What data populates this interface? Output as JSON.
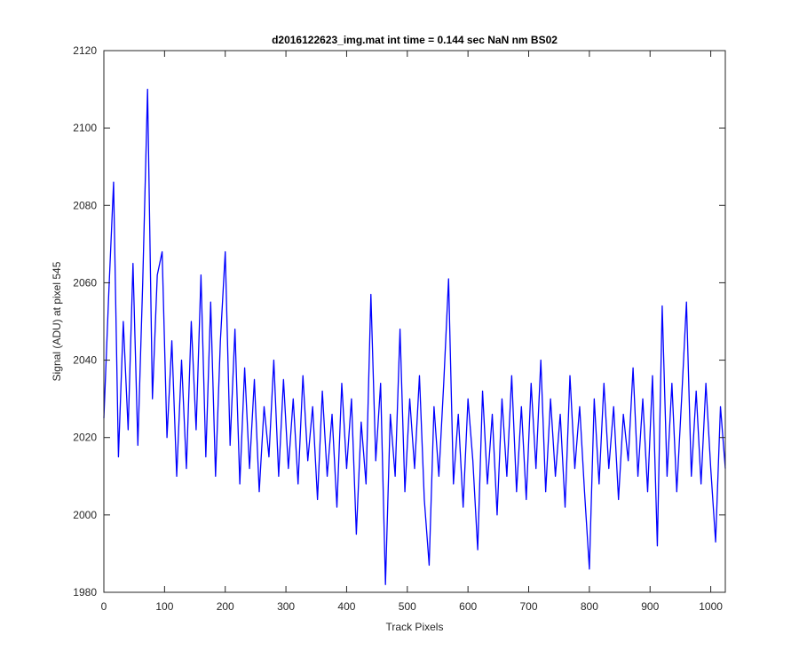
{
  "chart_data": {
    "type": "line",
    "title": "d2016122623_img.mat int time = 0.144 sec  NaN nm BS02",
    "x_label": "Track Pixels",
    "y_label": "Signal (ADU) at pixel 545",
    "xlim": [
      0,
      1024
    ],
    "ylim": [
      1980,
      2120
    ],
    "xticks": [
      0,
      100,
      200,
      300,
      400,
      500,
      600,
      700,
      800,
      900,
      1000
    ],
    "yticks": [
      1980,
      2000,
      2020,
      2040,
      2060,
      2080,
      2100,
      2120
    ],
    "x": [
      0,
      8,
      16,
      24,
      32,
      40,
      48,
      56,
      64,
      72,
      80,
      88,
      96,
      104,
      112,
      120,
      128,
      136,
      144,
      152,
      160,
      168,
      176,
      184,
      192,
      200,
      208,
      216,
      224,
      232,
      240,
      248,
      256,
      264,
      272,
      280,
      288,
      296,
      304,
      312,
      320,
      328,
      336,
      344,
      352,
      360,
      368,
      376,
      384,
      392,
      400,
      408,
      416,
      424,
      432,
      440,
      448,
      456,
      464,
      472,
      480,
      488,
      496,
      504,
      512,
      520,
      528,
      536,
      544,
      552,
      560,
      568,
      576,
      584,
      592,
      600,
      608,
      616,
      624,
      632,
      640,
      648,
      656,
      664,
      672,
      680,
      688,
      696,
      704,
      712,
      720,
      728,
      736,
      744,
      752,
      760,
      768,
      776,
      784,
      792,
      800,
      808,
      816,
      824,
      832,
      840,
      848,
      856,
      864,
      872,
      880,
      888,
      896,
      904,
      912,
      920,
      928,
      936,
      944,
      952,
      960,
      968,
      976,
      984,
      992,
      1000,
      1008,
      1016,
      1024
    ],
    "series": [
      {
        "color": "#0000ff",
        "values": [
          2025,
          2057,
          2086,
          2015,
          2050,
          2022,
          2065,
          2018,
          2060,
          2110,
          2030,
          2062,
          2068,
          2020,
          2045,
          2010,
          2040,
          2012,
          2050,
          2022,
          2062,
          2015,
          2055,
          2010,
          2045,
          2068,
          2018,
          2048,
          2008,
          2038,
          2012,
          2035,
          2006,
          2028,
          2015,
          2040,
          2010,
          2035,
          2012,
          2030,
          2008,
          2036,
          2014,
          2028,
          2004,
          2032,
          2010,
          2026,
          2002,
          2034,
          2012,
          2030,
          1995,
          2024,
          2008,
          2057,
          2014,
          2034,
          1982,
          2026,
          2010,
          2048,
          2006,
          2030,
          2012,
          2036,
          2004,
          1987,
          2028,
          2010,
          2034,
          2061,
          2008,
          2026,
          2002,
          2030,
          2014,
          1991,
          2032,
          2008,
          2026,
          2000,
          2030,
          2010,
          2036,
          2006,
          2028,
          2004,
          2034,
          2012,
          2040,
          2006,
          2030,
          2010,
          2026,
          2002,
          2036,
          2012,
          2028,
          2006,
          1986,
          2030,
          2008,
          2034,
          2012,
          2028,
          2004,
          2026,
          2014,
          2038,
          2010,
          2030,
          2006,
          2036,
          1992,
          2054,
          2010,
          2034,
          2006,
          2030,
          2055,
          2010,
          2032,
          2008,
          2034,
          2012,
          1993,
          2028,
          2012
        ]
      }
    ]
  }
}
